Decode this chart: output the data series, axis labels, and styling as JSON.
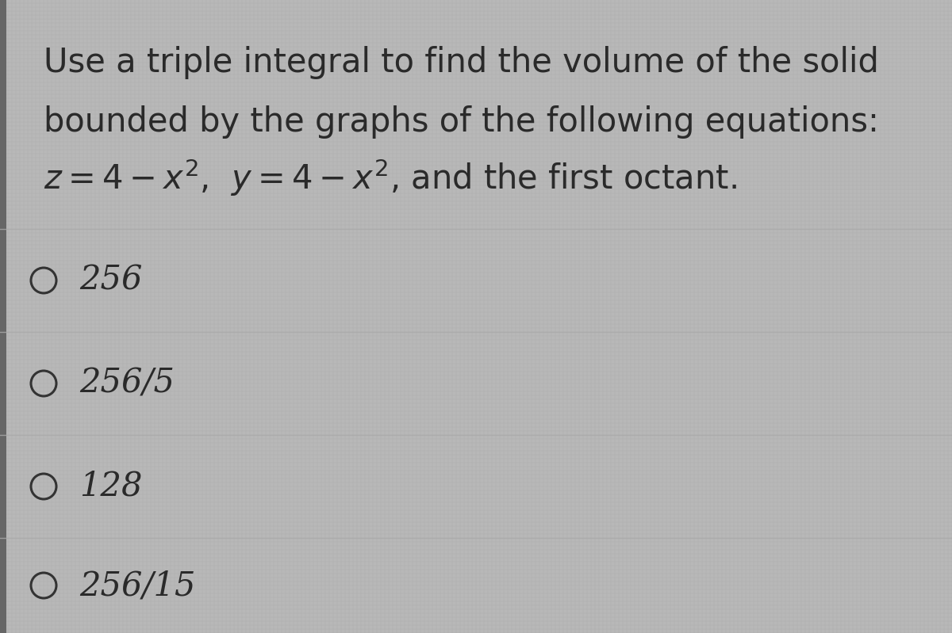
{
  "background_color": "#b8b8b8",
  "grid_color": "#999999",
  "text_color": "#2a2a2a",
  "question_line1": "Use a triple integral to find the volume of the solid",
  "question_line2": "bounded by the graphs of the following equations:",
  "question_line3": "$z = 4 - x^2$,  $y = 4 - x^2$, and the first octant.",
  "choices": [
    "256",
    "256/5",
    "128",
    "256/15"
  ],
  "font_size_question": 30,
  "font_size_choices": 30,
  "fig_width": 12.0,
  "fig_height": 7.99,
  "circle_color": "#333333",
  "separator_color": "#aaaaaa",
  "left_bar_color": "#666666"
}
